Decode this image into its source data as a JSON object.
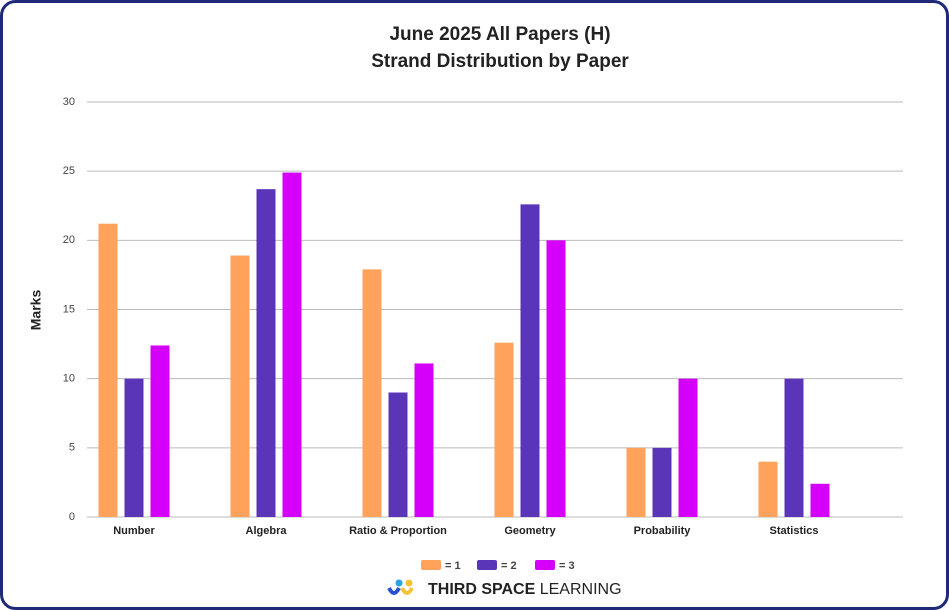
{
  "chart_data": {
    "type": "bar",
    "title": "June 2025 All Papers (H)",
    "subtitle": "Strand Distribution by Paper",
    "y_label": "Marks",
    "categories": [
      "Number",
      "Algebra",
      "Ratio & Proportion",
      "Geometry",
      "Probability",
      "Statistics"
    ],
    "series": [
      {
        "name": "= 1",
        "color": "#ffa25c",
        "values": [
          21.2,
          18.9,
          17.9,
          12.6,
          5,
          4
        ]
      },
      {
        "name": "= 2",
        "color": "#5a35b8",
        "values": [
          10,
          23.7,
          9,
          22.6,
          5,
          10
        ]
      },
      {
        "name": "= 3",
        "color": "#d500f9",
        "values": [
          12.4,
          24.9,
          11.1,
          20,
          10,
          2.4
        ]
      }
    ],
    "ylim": [
      0,
      30
    ],
    "yticks": [
      0,
      5,
      10,
      15,
      20,
      25,
      30
    ],
    "grid": true,
    "legend": "bottom"
  },
  "footer": {
    "brand_bold": "THIRD SPACE",
    "brand_light": "LEARNING"
  }
}
